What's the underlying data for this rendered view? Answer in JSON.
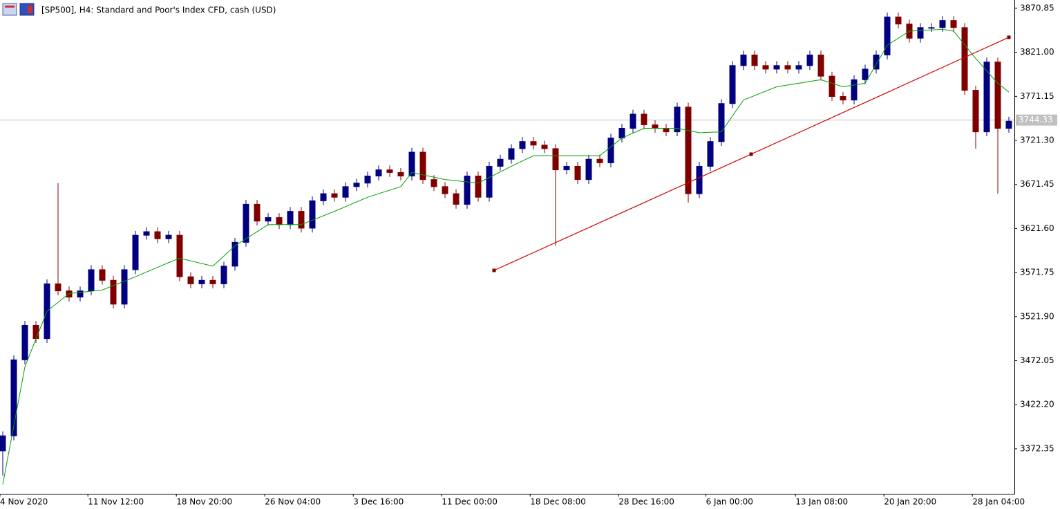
{
  "chart_data": {
    "type": "candlestick",
    "title": "[SP500], H4:  Standard and Poor's Index CFD, cash (USD)",
    "up_color": "#000080",
    "down_color": "#800000",
    "open": [
      3370,
      3387,
      3473,
      3512,
      3497,
      3559,
      3551,
      3544,
      3551,
      3575,
      3563,
      3536,
      3575,
      3614,
      3618,
      3610,
      3614,
      3567,
      3559,
      3563,
      3559,
      3579,
      3606,
      3649,
      3630,
      3634,
      3626,
      3641,
      3622,
      3653,
      3661,
      3657,
      3669,
      3673,
      3681,
      3688,
      3685,
      3681,
      3708,
      3677,
      3669,
      3661,
      3649,
      3681,
      3657,
      3692,
      3700,
      3712,
      3720,
      3716,
      3712,
      3688,
      3692,
      3677,
      3700,
      3696,
      3724,
      3735,
      3751,
      3739,
      3735,
      3731,
      3759,
      3661,
      3692,
      3720,
      3763,
      3806,
      3818,
      3806,
      3802,
      3806,
      3802,
      3806,
      3818,
      3794,
      3771,
      3767,
      3790,
      3802,
      3818,
      3861,
      3853,
      3837,
      3849,
      3849,
      3857,
      3849,
      3778,
      3731,
      3810,
      3735
    ],
    "high": [
      3392,
      3478,
      3517,
      3517,
      3564,
      3673,
      3556,
      3556,
      3580,
      3580,
      3568,
      3580,
      3619,
      3623,
      3623,
      3619,
      3619,
      3572,
      3568,
      3568,
      3584,
      3611,
      3654,
      3654,
      3639,
      3639,
      3646,
      3646,
      3658,
      3666,
      3666,
      3674,
      3678,
      3686,
      3693,
      3693,
      3690,
      3713,
      3713,
      3682,
      3674,
      3666,
      3686,
      3686,
      3697,
      3705,
      3717,
      3725,
      3725,
      3721,
      3717,
      3697,
      3697,
      3705,
      3705,
      3729,
      3740,
      3756,
      3756,
      3744,
      3740,
      3764,
      3764,
      3697,
      3725,
      3768,
      3811,
      3823,
      3823,
      3811,
      3811,
      3811,
      3811,
      3823,
      3823,
      3799,
      3776,
      3795,
      3807,
      3823,
      3866,
      3866,
      3858,
      3854,
      3854,
      3862,
      3862,
      3854,
      3783,
      3815,
      3815,
      3748
    ],
    "low": [
      3342,
      3382,
      3468,
      3492,
      3492,
      3546,
      3539,
      3539,
      3546,
      3558,
      3531,
      3531,
      3570,
      3609,
      3605,
      3605,
      3562,
      3554,
      3554,
      3554,
      3554,
      3574,
      3601,
      3625,
      3625,
      3621,
      3621,
      3617,
      3617,
      3648,
      3652,
      3652,
      3664,
      3668,
      3676,
      3680,
      3676,
      3676,
      3672,
      3664,
      3656,
      3644,
      3644,
      3652,
      3652,
      3687,
      3695,
      3707,
      3711,
      3707,
      3602,
      3683,
      3672,
      3672,
      3691,
      3691,
      3719,
      3730,
      3734,
      3730,
      3726,
      3726,
      3651,
      3656,
      3687,
      3715,
      3758,
      3801,
      3801,
      3797,
      3797,
      3797,
      3797,
      3801,
      3789,
      3766,
      3762,
      3762,
      3785,
      3797,
      3813,
      3848,
      3832,
      3832,
      3844,
      3844,
      3844,
      3773,
      3712,
      3726,
      3661,
      3730
    ],
    "close": [
      3387,
      3473,
      3512,
      3497,
      3559,
      3551,
      3544,
      3551,
      3575,
      3563,
      3536,
      3575,
      3614,
      3618,
      3610,
      3614,
      3567,
      3559,
      3563,
      3559,
      3579,
      3606,
      3649,
      3630,
      3634,
      3626,
      3641,
      3622,
      3653,
      3661,
      3657,
      3669,
      3673,
      3681,
      3688,
      3685,
      3681,
      3708,
      3677,
      3669,
      3661,
      3649,
      3681,
      3657,
      3692,
      3700,
      3712,
      3720,
      3716,
      3712,
      3688,
      3692,
      3677,
      3700,
      3696,
      3724,
      3735,
      3751,
      3739,
      3735,
      3731,
      3759,
      3661,
      3692,
      3720,
      3763,
      3806,
      3818,
      3806,
      3802,
      3806,
      3802,
      3806,
      3818,
      3794,
      3771,
      3767,
      3790,
      3802,
      3818,
      3861,
      3853,
      3837,
      3849,
      3849,
      3857,
      3849,
      3778,
      3731,
      3810,
      3735,
      3743
    ],
    "ma": {
      "color": "#00a000",
      "x": [
        0,
        2,
        4,
        6,
        9,
        12,
        15,
        16,
        19,
        21,
        24,
        27,
        30,
        33,
        36,
        37,
        40,
        43,
        46,
        48,
        51,
        54,
        56,
        58,
        61,
        63,
        65,
        67,
        70,
        74,
        76,
        78,
        80,
        82,
        85,
        86,
        88,
        90,
        91
      ],
      "values": [
        3332,
        3465,
        3528,
        3548,
        3552,
        3567,
        3583,
        3588,
        3579,
        3602,
        3626,
        3626,
        3641,
        3657,
        3669,
        3685,
        3677,
        3673,
        3692,
        3704,
        3704,
        3704,
        3724,
        3735,
        3735,
        3730,
        3731,
        3767,
        3782,
        3790,
        3782,
        3786,
        3829,
        3845,
        3847,
        3845,
        3814,
        3786,
        3776
      ]
    },
    "trendline": {
      "color": "#d00000",
      "x": [
        44.44,
        67.69,
        91
      ],
      "values": [
        3574.2,
        3705.7,
        3838.0
      ]
    },
    "last_price": 3744.33,
    "xlim": [
      -0.25,
      91.5
    ],
    "ylim": [
      3321.4,
      3880.2
    ],
    "yticks": [
      3870.85,
      {
        "value": 3821,
        "label": "3821.00"
      },
      3771.15,
      {
        "value": 3721.3,
        "label": "3721.30"
      },
      3671.45,
      {
        "value": 3621.6,
        "label": "3621.60"
      },
      3571.75,
      {
        "value": 3521.9,
        "label": "3521.90"
      },
      3472.05,
      {
        "value": 3422.2,
        "label": "3422.20"
      },
      3372.35
    ],
    "xticks": [
      {
        "value": -0.25,
        "label": "4 Nov 2020"
      },
      {
        "value": 7.7,
        "label": "11 Nov 12:00"
      },
      {
        "value": 15.7,
        "label": "18 Nov 20:00"
      },
      {
        "value": 23.7,
        "label": "26 Nov 04:00"
      },
      {
        "value": 31.7,
        "label": "3 Dec 16:00"
      },
      {
        "value": 39.7,
        "label": "11 Dec 00:00"
      },
      {
        "value": 47.7,
        "label": "18 Dec 08:00"
      },
      {
        "value": 55.7,
        "label": "28 Dec 16:00"
      },
      {
        "value": 63.6,
        "label": "6 Jan 00:00"
      },
      {
        "value": 71.7,
        "label": "13 Jan 08:00"
      },
      {
        "value": 79.7,
        "label": "20 Jan 20:00"
      },
      {
        "value": 87.7,
        "label": "28 Jan 04:00"
      }
    ]
  }
}
